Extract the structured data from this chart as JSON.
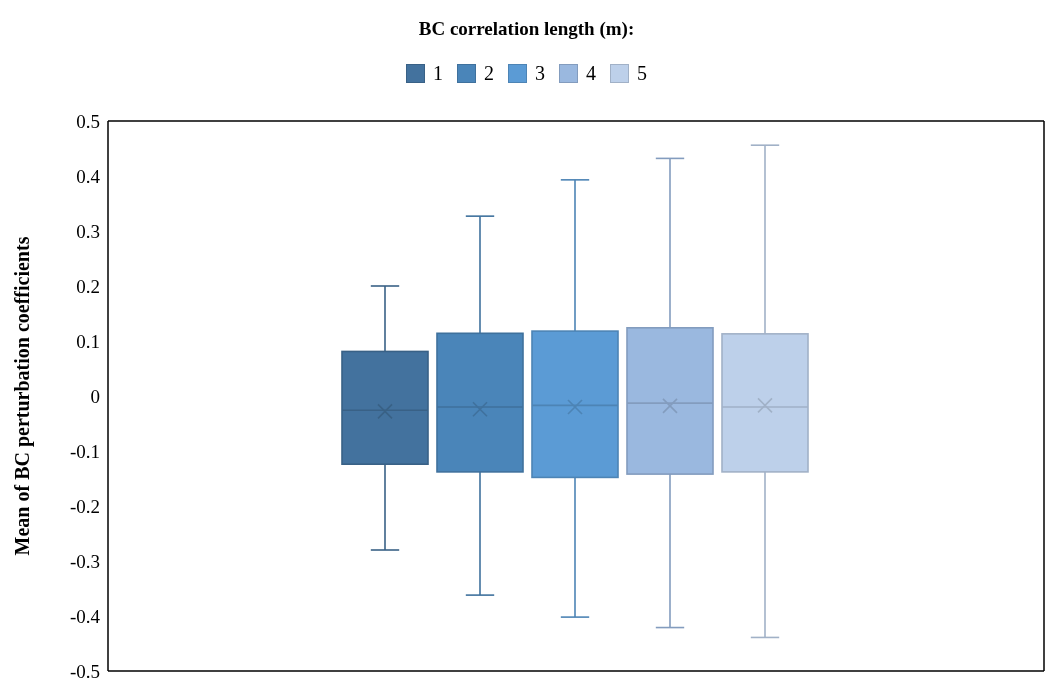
{
  "chart_data": {
    "type": "box",
    "legend_title": "BC correlation length (m):",
    "ylabel": "Mean of BC perturbation coefficients",
    "categories": [
      null
    ],
    "legend": "top",
    "tick_labels": "y",
    "ylim": [
      -0.5,
      0.5
    ],
    "yticks": [
      -0.5,
      -0.4,
      -0.3,
      -0.2,
      -0.1,
      0,
      0.1,
      0.2,
      0.3,
      0.4,
      0.5
    ],
    "series": [
      {
        "name": "1",
        "color": "#43729e",
        "boxes": [
          {
            "low": -0.28,
            "q1": -0.124,
            "median": -0.026,
            "q3": 0.081,
            "high": 0.2,
            "mean": -0.028
          }
        ]
      },
      {
        "name": "2",
        "color": "#4a85b9",
        "boxes": [
          {
            "low": -0.362,
            "q1": -0.138,
            "median": -0.02,
            "q3": 0.114,
            "high": 0.327,
            "mean": -0.024
          }
        ]
      },
      {
        "name": "3",
        "color": "#5b9bd5",
        "boxes": [
          {
            "low": -0.402,
            "q1": -0.148,
            "median": -0.017,
            "q3": 0.118,
            "high": 0.393,
            "mean": -0.02
          }
        ]
      },
      {
        "name": "4",
        "color": "#9ab8df",
        "boxes": [
          {
            "low": -0.421,
            "q1": -0.142,
            "median": -0.013,
            "q3": 0.124,
            "high": 0.432,
            "mean": -0.018
          }
        ]
      },
      {
        "name": "5",
        "color": "#bdd0ea",
        "boxes": [
          {
            "low": -0.439,
            "q1": -0.138,
            "median": -0.02,
            "q3": 0.113,
            "high": 0.456,
            "mean": -0.017
          }
        ]
      }
    ]
  }
}
